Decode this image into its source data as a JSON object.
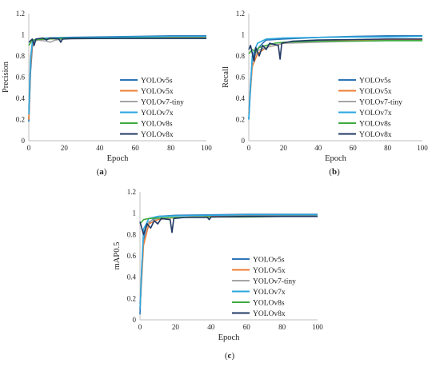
{
  "panel_labels": [
    "(a)",
    "(b)",
    "(c)"
  ],
  "colors": {
    "YOLOv5s": "#2e75b6",
    "YOLOv5x": "#ed7d31",
    "YOLOv7-tiny": "#a5a5a5",
    "YOLOv7x": "#2aa7e0",
    "YOLOv8s": "#3faa3f",
    "YOLOv8x": "#1f3864"
  },
  "chart_data": [
    {
      "type": "line",
      "panel": "(a)",
      "xlabel": "Epoch",
      "ylabel": "Precision",
      "xlim": [
        0,
        100
      ],
      "ylim": [
        0,
        1.2
      ],
      "xticks": [
        0,
        20,
        40,
        60,
        80,
        100
      ],
      "yticks": [
        0,
        0.2,
        0.4,
        0.6,
        0.8,
        1,
        1.2
      ],
      "legend": "right-middle",
      "series": [
        {
          "name": "YOLOv5s",
          "points": [
            [
              0,
              0.18
            ],
            [
              1,
              0.65
            ],
            [
              2,
              0.88
            ],
            [
              3,
              0.95
            ],
            [
              5,
              0.96
            ],
            [
              10,
              0.97
            ],
            [
              20,
              0.975
            ],
            [
              40,
              0.98
            ],
            [
              60,
              0.985
            ],
            [
              80,
              0.99
            ],
            [
              100,
              0.99
            ]
          ]
        },
        {
          "name": "YOLOv5x",
          "points": [
            [
              0,
              0.2
            ],
            [
              1,
              0.7
            ],
            [
              2,
              0.9
            ],
            [
              4,
              0.95
            ],
            [
              10,
              0.96
            ],
            [
              20,
              0.965
            ],
            [
              40,
              0.97
            ],
            [
              60,
              0.97
            ],
            [
              80,
              0.975
            ],
            [
              100,
              0.975
            ]
          ]
        },
        {
          "name": "YOLOv7-tiny",
          "points": [
            [
              0,
              0.3
            ],
            [
              1,
              0.8
            ],
            [
              2,
              0.92
            ],
            [
              5,
              0.95
            ],
            [
              10,
              0.94
            ],
            [
              12,
              0.93
            ],
            [
              15,
              0.95
            ],
            [
              20,
              0.96
            ],
            [
              40,
              0.965
            ],
            [
              60,
              0.97
            ],
            [
              80,
              0.97
            ],
            [
              100,
              0.97
            ]
          ]
        },
        {
          "name": "YOLOv7x",
          "points": [
            [
              0,
              0.25
            ],
            [
              1,
              0.75
            ],
            [
              2,
              0.93
            ],
            [
              4,
              0.96
            ],
            [
              10,
              0.965
            ],
            [
              20,
              0.97
            ],
            [
              40,
              0.975
            ],
            [
              60,
              0.98
            ],
            [
              80,
              0.985
            ],
            [
              100,
              0.985
            ]
          ]
        },
        {
          "name": "YOLOv8s",
          "points": [
            [
              0,
              0.9
            ],
            [
              2,
              0.95
            ],
            [
              5,
              0.955
            ],
            [
              10,
              0.96
            ],
            [
              20,
              0.965
            ],
            [
              40,
              0.965
            ],
            [
              60,
              0.97
            ],
            [
              80,
              0.97
            ],
            [
              100,
              0.97
            ]
          ]
        },
        {
          "name": "YOLOv8x",
          "points": [
            [
              0,
              0.93
            ],
            [
              2,
              0.96
            ],
            [
              3,
              0.9
            ],
            [
              4,
              0.96
            ],
            [
              8,
              0.97
            ],
            [
              10,
              0.95
            ],
            [
              12,
              0.97
            ],
            [
              17,
              0.96
            ],
            [
              18,
              0.93
            ],
            [
              19,
              0.96
            ],
            [
              25,
              0.965
            ],
            [
              40,
              0.965
            ],
            [
              60,
              0.965
            ],
            [
              80,
              0.965
            ],
            [
              100,
              0.965
            ]
          ]
        }
      ]
    },
    {
      "type": "line",
      "panel": "(b)",
      "xlabel": "Epoch",
      "ylabel": "Recall",
      "xlim": [
        0,
        100
      ],
      "ylim": [
        0,
        1.2
      ],
      "xticks": [
        0,
        20,
        40,
        60,
        80,
        100
      ],
      "yticks": [
        0,
        0.2,
        0.4,
        0.6,
        0.8,
        1,
        1.2
      ],
      "legend": "right-middle",
      "series": [
        {
          "name": "YOLOv5s",
          "points": [
            [
              0,
              0.2
            ],
            [
              1,
              0.55
            ],
            [
              2,
              0.75
            ],
            [
              4,
              0.85
            ],
            [
              8,
              0.92
            ],
            [
              10,
              0.95
            ],
            [
              20,
              0.96
            ],
            [
              40,
              0.975
            ],
            [
              60,
              0.985
            ],
            [
              80,
              0.99
            ],
            [
              100,
              0.99
            ]
          ]
        },
        {
          "name": "YOLOv5x",
          "points": [
            [
              0,
              0.25
            ],
            [
              2,
              0.7
            ],
            [
              5,
              0.82
            ],
            [
              10,
              0.88
            ],
            [
              15,
              0.9
            ],
            [
              20,
              0.92
            ],
            [
              30,
              0.93
            ],
            [
              40,
              0.94
            ],
            [
              60,
              0.95
            ],
            [
              80,
              0.955
            ],
            [
              100,
              0.955
            ]
          ]
        },
        {
          "name": "YOLOv7-tiny",
          "points": [
            [
              0,
              0.3
            ],
            [
              2,
              0.75
            ],
            [
              5,
              0.85
            ],
            [
              10,
              0.88
            ],
            [
              20,
              0.92
            ],
            [
              40,
              0.93
            ],
            [
              60,
              0.94
            ],
            [
              80,
              0.945
            ],
            [
              100,
              0.945
            ]
          ]
        },
        {
          "name": "YOLOv7x",
          "points": [
            [
              0,
              0.2
            ],
            [
              2,
              0.8
            ],
            [
              5,
              0.92
            ],
            [
              10,
              0.96
            ],
            [
              20,
              0.97
            ],
            [
              40,
              0.975
            ],
            [
              60,
              0.98
            ],
            [
              80,
              0.98
            ],
            [
              100,
              0.985
            ]
          ]
        },
        {
          "name": "YOLOv8s",
          "points": [
            [
              0,
              0.82
            ],
            [
              2,
              0.86
            ],
            [
              4,
              0.84
            ],
            [
              6,
              0.88
            ],
            [
              10,
              0.9
            ],
            [
              15,
              0.92
            ],
            [
              20,
              0.93
            ],
            [
              40,
              0.94
            ],
            [
              60,
              0.94
            ],
            [
              80,
              0.945
            ],
            [
              100,
              0.945
            ]
          ]
        },
        {
          "name": "YOLOv8x",
          "points": [
            [
              0,
              0.86
            ],
            [
              1,
              0.9
            ],
            [
              3,
              0.75
            ],
            [
              4,
              0.88
            ],
            [
              6,
              0.8
            ],
            [
              8,
              0.9
            ],
            [
              10,
              0.86
            ],
            [
              12,
              0.92
            ],
            [
              17,
              0.9
            ],
            [
              18,
              0.77
            ],
            [
              19,
              0.92
            ],
            [
              25,
              0.94
            ],
            [
              40,
              0.95
            ],
            [
              60,
              0.955
            ],
            [
              80,
              0.96
            ],
            [
              100,
              0.96
            ]
          ]
        }
      ]
    },
    {
      "type": "line",
      "panel": "(c)",
      "xlabel": "Epoch",
      "ylabel": "mAP0.5",
      "xlim": [
        0,
        100
      ],
      "ylim": [
        0,
        1.2
      ],
      "xticks": [
        0,
        20,
        40,
        60,
        80,
        100
      ],
      "yticks": [
        0,
        0.2,
        0.4,
        0.6,
        0.8,
        1,
        1.2
      ],
      "legend": "right-middle",
      "series": [
        {
          "name": "YOLOv5s",
          "points": [
            [
              0,
              0.05
            ],
            [
              1,
              0.5
            ],
            [
              2,
              0.75
            ],
            [
              4,
              0.9
            ],
            [
              8,
              0.95
            ],
            [
              10,
              0.97
            ],
            [
              20,
              0.98
            ],
            [
              40,
              0.985
            ],
            [
              60,
              0.99
            ],
            [
              80,
              0.99
            ],
            [
              100,
              0.99
            ]
          ]
        },
        {
          "name": "YOLOv5x",
          "points": [
            [
              0,
              0.1
            ],
            [
              2,
              0.7
            ],
            [
              5,
              0.9
            ],
            [
              10,
              0.94
            ],
            [
              20,
              0.96
            ],
            [
              40,
              0.97
            ],
            [
              60,
              0.975
            ],
            [
              80,
              0.975
            ],
            [
              100,
              0.975
            ]
          ]
        },
        {
          "name": "YOLOv7-tiny",
          "points": [
            [
              0,
              0.15
            ],
            [
              2,
              0.8
            ],
            [
              5,
              0.92
            ],
            [
              10,
              0.95
            ],
            [
              20,
              0.96
            ],
            [
              40,
              0.965
            ],
            [
              60,
              0.97
            ],
            [
              80,
              0.97
            ],
            [
              100,
              0.97
            ]
          ]
        },
        {
          "name": "YOLOv7x",
          "points": [
            [
              0,
              0.1
            ],
            [
              2,
              0.85
            ],
            [
              5,
              0.95
            ],
            [
              10,
              0.97
            ],
            [
              20,
              0.975
            ],
            [
              40,
              0.98
            ],
            [
              60,
              0.985
            ],
            [
              80,
              0.985
            ],
            [
              100,
              0.985
            ]
          ]
        },
        {
          "name": "YOLOv8s",
          "points": [
            [
              0,
              0.9
            ],
            [
              2,
              0.94
            ],
            [
              5,
              0.95
            ],
            [
              10,
              0.955
            ],
            [
              20,
              0.96
            ],
            [
              40,
              0.965
            ],
            [
              60,
              0.965
            ],
            [
              80,
              0.97
            ],
            [
              100,
              0.97
            ]
          ]
        },
        {
          "name": "YOLOv8x",
          "points": [
            [
              0,
              0.92
            ],
            [
              2,
              0.8
            ],
            [
              4,
              0.9
            ],
            [
              6,
              0.86
            ],
            [
              8,
              0.93
            ],
            [
              10,
              0.9
            ],
            [
              12,
              0.95
            ],
            [
              17,
              0.94
            ],
            [
              18,
              0.82
            ],
            [
              19,
              0.95
            ],
            [
              25,
              0.96
            ],
            [
              38,
              0.96
            ],
            [
              39,
              0.94
            ],
            [
              40,
              0.965
            ],
            [
              60,
              0.97
            ],
            [
              80,
              0.97
            ],
            [
              100,
              0.97
            ]
          ]
        }
      ]
    }
  ]
}
